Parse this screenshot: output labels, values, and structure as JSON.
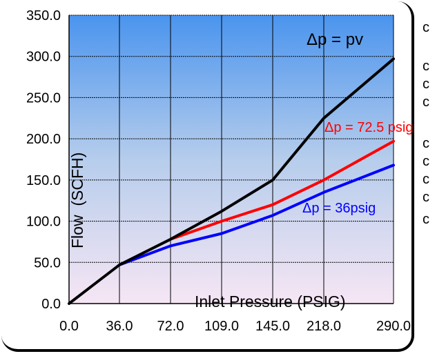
{
  "chart_data": {
    "type": "line",
    "x": [
      "0.0",
      "36.0",
      "72.0",
      "109.0",
      "145.0",
      "218.0",
      "290.0"
    ],
    "xlabel": "Inlet Pressure (PSIG)",
    "ylabel": "Flow  (SCFH)",
    "ylim": [
      0,
      350
    ],
    "yticks": [
      "0.0",
      "50.0",
      "100.0",
      "150.0",
      "200.0",
      "250.0",
      "300.0",
      "350.0"
    ],
    "grid": true,
    "series": [
      {
        "name": "Δp = pv",
        "color": "#000000",
        "values": [
          0,
          47,
          78,
          112,
          150,
          225,
          297
        ]
      },
      {
        "name": "Δp = 72.5 psig",
        "color": "#ff0000",
        "values": [
          null,
          null,
          78,
          100,
          120,
          150,
          197
        ]
      },
      {
        "name": "Δp = 36psig",
        "color": "#0000ff",
        "values": [
          null,
          47,
          70,
          85,
          107,
          135,
          168
        ]
      }
    ]
  },
  "right_marks": [
    "c",
    "c",
    "c",
    "c",
    "c",
    "c",
    "c",
    "c",
    "c"
  ]
}
